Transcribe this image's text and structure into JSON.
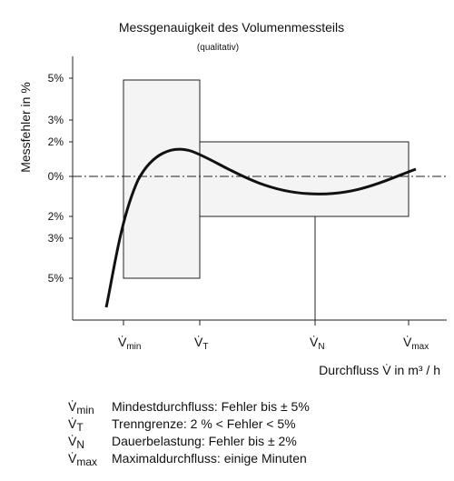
{
  "header": {
    "title": "Messgenauigkeit des Volumenmessteils",
    "subtitle": "(qualitativ)"
  },
  "axes": {
    "y_label": "Messfehler in %",
    "x_label": "Durchfluss V̇ in m³ / h",
    "y_ticks": [
      "5%",
      "3%",
      "2%",
      "0%",
      "2%",
      "3%",
      "5%"
    ],
    "x_ticks": [
      {
        "symbol": "V̇",
        "sub": "min"
      },
      {
        "symbol": "V̇",
        "sub": "T"
      },
      {
        "symbol": "V̇",
        "sub": "N"
      },
      {
        "symbol": "V̇",
        "sub": "max"
      }
    ]
  },
  "legend": [
    {
      "symbol": "V̇",
      "sub": "min",
      "text": "Mindestdurchfluss:  Fehler bis  ±  5%"
    },
    {
      "symbol": "V̇",
      "sub": "T",
      "text": "Trenngrenze: 2 % < Fehler <  5%"
    },
    {
      "symbol": "V̇",
      "sub": "N",
      "text": "Dauerbelastung:  Fehler bis  ± 2%"
    },
    {
      "symbol": "V̇",
      "sub": "max",
      "text": "Maximaldurchfluss: einige Minuten"
    }
  ]
}
